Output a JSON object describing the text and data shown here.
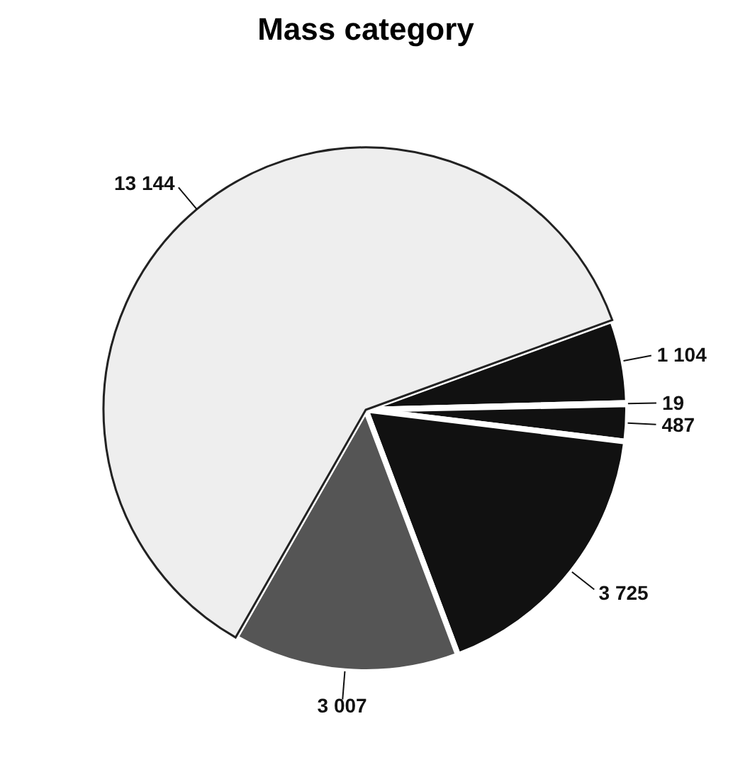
{
  "chart_data": {
    "type": "pie",
    "title": "Mass category",
    "categories": [
      null,
      null,
      null,
      null,
      null,
      null
    ],
    "values": [
      1104,
      19,
      487,
      3725,
      3007,
      13144
    ],
    "colors": [
      "#111111",
      "#111111",
      "#111111",
      "#111111",
      "#555555",
      "#eeeeee"
    ],
    "value_labels": [
      "1 104",
      "19",
      "487",
      "3 725",
      "3 007",
      "13 144"
    ]
  }
}
